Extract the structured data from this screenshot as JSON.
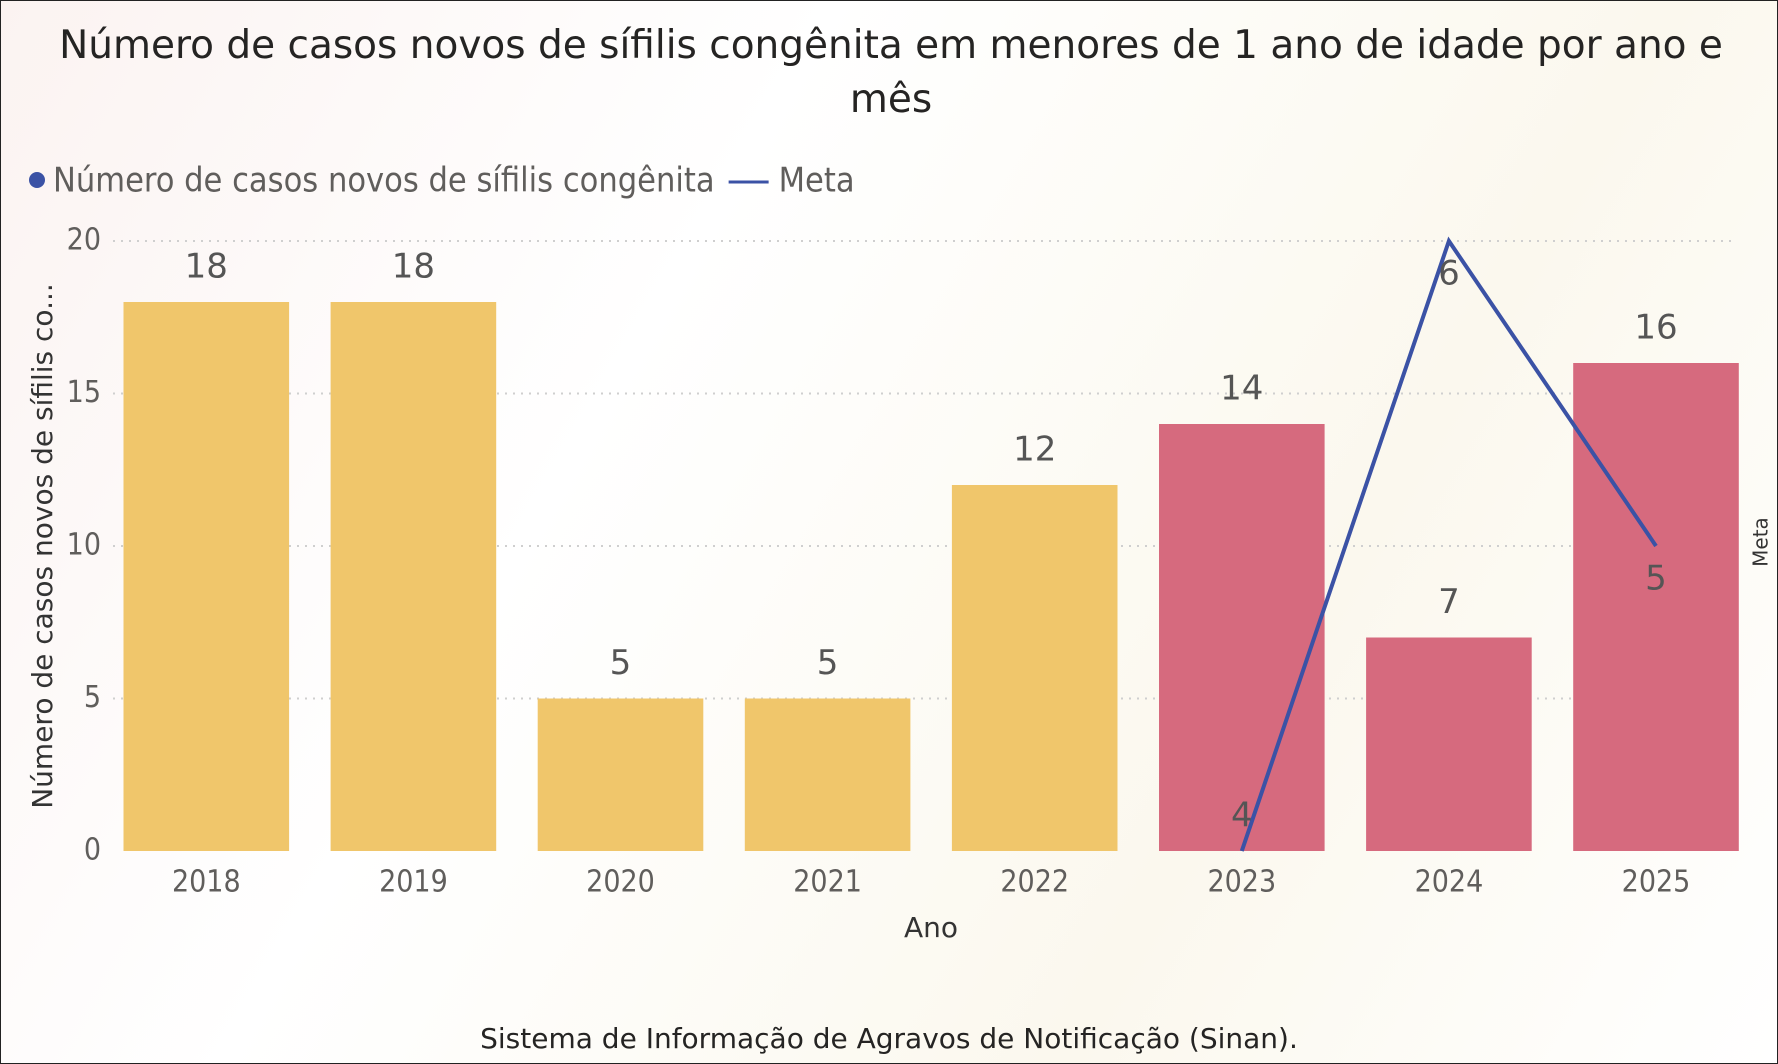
{
  "chart_data": {
    "type": "bar",
    "title": "Número de casos novos de sífilis congênita em menores de 1 ano de idade por ano e mês",
    "x_label": "Ano",
    "y_label": "Número de casos novos de sífilis co...",
    "y2_label": "Meta",
    "footer": "Sistema de Informação de Agravos de Notificação (Sinan).",
    "categories": [
      "2018",
      "2019",
      "2020",
      "2021",
      "2022",
      "2023",
      "2024",
      "2025"
    ],
    "series": [
      {
        "name": "Número de casos novos de sífilis congênita",
        "color": "#3b52a5",
        "colors": [
          "#f0c66b",
          "#f0c66b",
          "#f0c66b",
          "#f0c66b",
          "#f0c66b",
          "#d66a7e",
          "#d66a7e",
          "#d66a7e"
        ],
        "values": [
          18,
          18,
          5,
          5,
          12,
          14,
          7,
          16
        ]
      },
      {
        "name": "Meta",
        "type": "line",
        "axis": "y2",
        "color": "#3b52a5",
        "values": [
          null,
          null,
          null,
          null,
          null,
          4,
          6,
          5
        ]
      }
    ],
    "ylim": [
      0,
      20
    ],
    "yticks": [
      0,
      5,
      10,
      15,
      20
    ],
    "y2lim": [
      4,
      6
    ],
    "grid": true
  }
}
